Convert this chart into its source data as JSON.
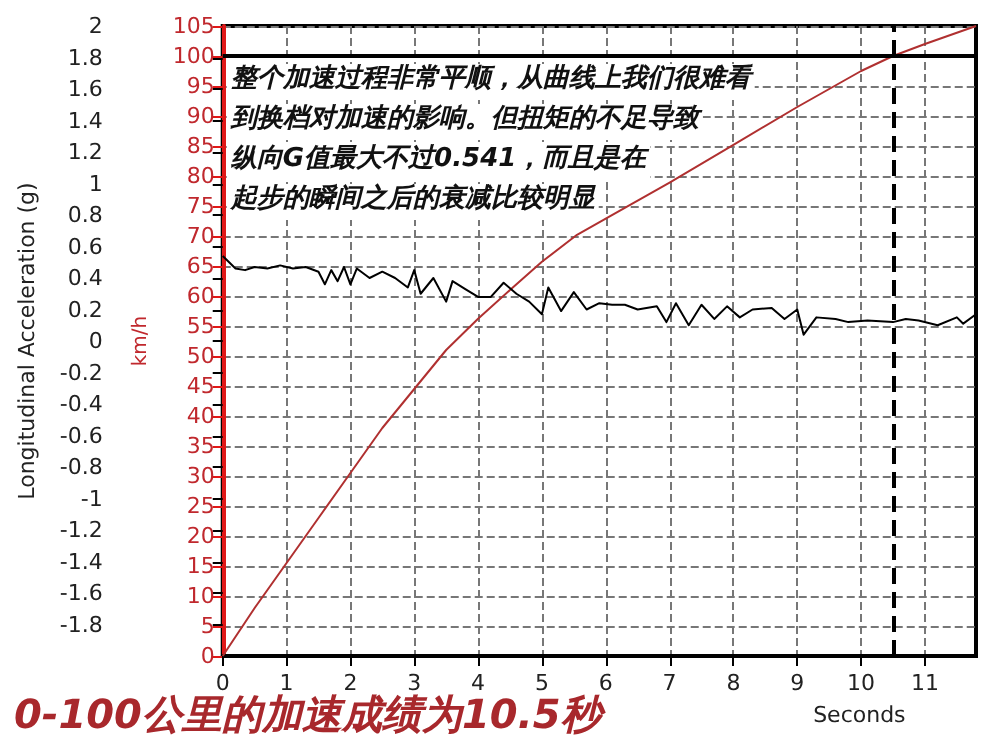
{
  "chart_data": {
    "type": "line",
    "title": "0-100公里的加速成绩为10.5秒",
    "xlabel": "Seconds",
    "ylabel": "Longitudinal Acceleration (g)",
    "y2label": "km/h",
    "annotations": [
      "整个加速过程非常平顺，从曲线上我们很难看",
      "到换档对加速的影响。但扭矩的不足导致",
      "纵向G值最大不过0.541，而且是在",
      "起步的瞬间之后的衰减比较明显"
    ],
    "xlim": [
      0,
      11.8
    ],
    "xticks": [
      0,
      1,
      2,
      3,
      4,
      5,
      6,
      7,
      8,
      9,
      10,
      11
    ],
    "ylim": [
      -2,
      2
    ],
    "yticks": [
      -1.8,
      -1.6,
      -1.4,
      -1.2,
      -1,
      -0.8,
      -0.6,
      -0.4,
      -0.2,
      0,
      0.2,
      0.4,
      0.6,
      0.8,
      1,
      1.2,
      1.4,
      1.6,
      1.8,
      2
    ],
    "y2lim": [
      0,
      105
    ],
    "y2ticks": [
      0,
      5,
      10,
      15,
      20,
      25,
      30,
      35,
      40,
      45,
      50,
      55,
      60,
      65,
      70,
      75,
      80,
      85,
      90,
      95,
      100,
      105
    ],
    "grid": true,
    "marker": "none",
    "line_style": "solid",
    "ref_lines": [
      {
        "axis": "y2",
        "value": 100,
        "color": "#000000",
        "line_style": "solid"
      },
      {
        "axis": "x",
        "value": 10.5,
        "color": "#000000",
        "line_style": "dashed"
      }
    ],
    "series": [
      {
        "color": "#b03030",
        "axis": "y2",
        "x": [
          0,
          0.5,
          1,
          1.5,
          2,
          2.5,
          3,
          3.5,
          4,
          4.5,
          5,
          5.55,
          6,
          7,
          8,
          9,
          10,
          10.5,
          11,
          11.8
        ],
        "values": [
          0,
          8,
          15.5,
          23,
          30.5,
          38,
          44.5,
          51,
          56.2,
          61,
          65.7,
          70.2,
          72.9,
          78.9,
          85.2,
          91.5,
          97.5,
          100,
          102,
          105
        ]
      },
      {
        "color": "#000000",
        "axis": "y",
        "x": [
          0,
          0.2,
          0.35,
          0.5,
          0.7,
          0.9,
          1.1,
          1.3,
          1.5,
          1.6,
          1.7,
          1.8,
          1.9,
          2,
          2.1,
          2.3,
          2.5,
          2.7,
          2.9,
          3,
          3.1,
          3.3,
          3.5,
          3.6,
          3.8,
          4,
          4.2,
          4.4,
          4.6,
          4.8,
          5,
          5.1,
          5.3,
          5.5,
          5.7,
          5.9,
          6.1,
          6.3,
          6.5,
          6.8,
          6.95,
          7.1,
          7.3,
          7.5,
          7.7,
          7.9,
          8.1,
          8.3,
          8.6,
          8.8,
          9,
          9.1,
          9.3,
          9.6,
          9.8,
          10.1,
          10.5,
          10.7,
          10.9,
          11.2,
          11.5,
          11.6,
          11.8
        ],
        "values": [
          0.54,
          0.46,
          0.45,
          0.47,
          0.46,
          0.48,
          0.46,
          0.47,
          0.44,
          0.36,
          0.45,
          0.38,
          0.47,
          0.36,
          0.46,
          0.4,
          0.44,
          0.4,
          0.34,
          0.45,
          0.3,
          0.4,
          0.25,
          0.38,
          0.33,
          0.28,
          0.28,
          0.37,
          0.3,
          0.25,
          0.17,
          0.34,
          0.19,
          0.31,
          0.2,
          0.24,
          0.23,
          0.23,
          0.2,
          0.22,
          0.12,
          0.24,
          0.1,
          0.23,
          0.14,
          0.22,
          0.15,
          0.2,
          0.21,
          0.14,
          0.2,
          0.04,
          0.15,
          0.14,
          0.12,
          0.13,
          0.12,
          0.14,
          0.13,
          0.1,
          0.15,
          0.11,
          0.17
        ]
      }
    ]
  }
}
